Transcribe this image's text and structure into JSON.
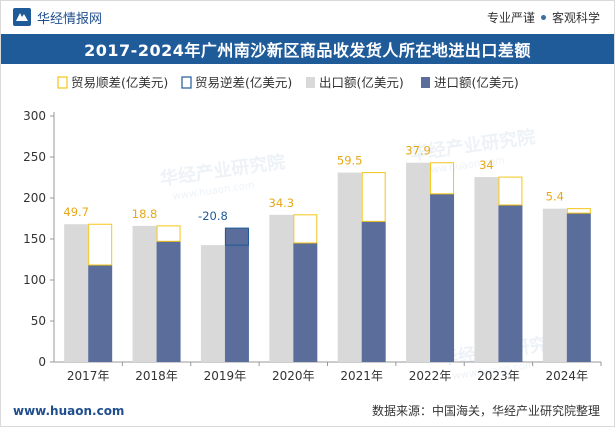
{
  "header": {
    "brand_name": "华经情报网",
    "tagline_left": "专业严谨",
    "tagline_right": "客观科学"
  },
  "chart_data": {
    "type": "bar",
    "title": "2017-2024年广州南沙新区商品收发货人所在地进出口差额",
    "categories": [
      "2017年",
      "2018年",
      "2019年",
      "2020年",
      "2021年",
      "2022年",
      "2023年",
      "2024年"
    ],
    "series": [
      {
        "name": "出口额(亿美元)",
        "values": [
          168.0,
          166.0,
          142.5,
          179.5,
          231.0,
          243.0,
          225.5,
          187.0
        ]
      },
      {
        "name": "进口额(亿美元)",
        "values": [
          118.3,
          147.2,
          163.3,
          145.2,
          171.5,
          205.1,
          191.5,
          181.6
        ]
      }
    ],
    "balance": {
      "surplus_name": "贸易顺差(亿美元)",
      "deficit_name": "贸易逆差(亿美元)",
      "values": [
        49.7,
        18.8,
        -20.8,
        34.3,
        59.5,
        37.9,
        34,
        5.4
      ],
      "labels": [
        "49.7",
        "18.8",
        "-20.8",
        "34.3",
        "59.5",
        "37.9",
        "34",
        "5.4"
      ]
    },
    "y_ticks": [
      "0",
      "50",
      "100",
      "150",
      "200",
      "250",
      "300"
    ],
    "ylim": [
      0,
      300
    ],
    "xlabel": "",
    "ylabel": "",
    "grid": false,
    "legend_position": "top",
    "colors": {
      "export": "#d9d9d9",
      "import": "#5b6d9b",
      "surplus": "#f5c518",
      "deficit": "#1f5a99",
      "surplus_label": "#e6a817",
      "deficit_label": "#1f5a99"
    }
  },
  "watermark": {
    "text": "华经产业研究院",
    "url": "www.huaon.com"
  },
  "footer": {
    "site": "www.huaon.com",
    "source": "数据来源：中国海关，华经产业研究院整理"
  }
}
